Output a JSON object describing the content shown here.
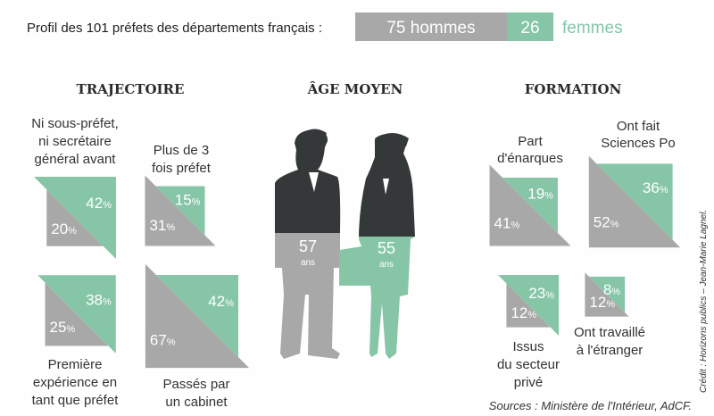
{
  "colors": {
    "men": "#a8a8a8",
    "women": "#86c6a7",
    "dark": "#353839",
    "text": "#333333"
  },
  "header": {
    "intro": "Profil des 101 préfets des départements français :",
    "men_count": "75 hommes",
    "women_count": "26",
    "women_label": "femmes"
  },
  "sections": {
    "trajectoire": "TRAJECTOIRE",
    "age": "ÂGE MOYEN",
    "formation": "FORMATION"
  },
  "age": {
    "men_value": "57",
    "women_value": "55",
    "unit": "ans"
  },
  "items": [
    {
      "label": [
        "Ni sous-préfet,",
        "ni secrétaire",
        "général avant"
      ],
      "men": 20,
      "women": 42
    },
    {
      "label": [
        "Plus de 3",
        "fois préfet"
      ],
      "men": 31,
      "women": 15
    },
    {
      "label": [
        "Première",
        "expérience en",
        "tant que préfet"
      ],
      "men": 25,
      "women": 38
    },
    {
      "label": [
        "Passés par",
        "un cabinet"
      ],
      "men": 67,
      "women": 42
    },
    {
      "label": [
        "Part",
        "d'énarques"
      ],
      "men": 41,
      "women": 19
    },
    {
      "label": [
        "Ont fait",
        "Sciences Po"
      ],
      "men": 52,
      "women": 36
    },
    {
      "label": [
        "Issus",
        "du secteur",
        "privé"
      ],
      "men": 12,
      "women": 23
    },
    {
      "label": [
        "Ont travaillé",
        "à l'étranger"
      ],
      "men": 12,
      "women": 8
    }
  ],
  "sources": "Sources : Ministère de l'Intérieur, AdCF.",
  "credit": "Crédit : Horizons publics – Jean-Marie Lagnel."
}
